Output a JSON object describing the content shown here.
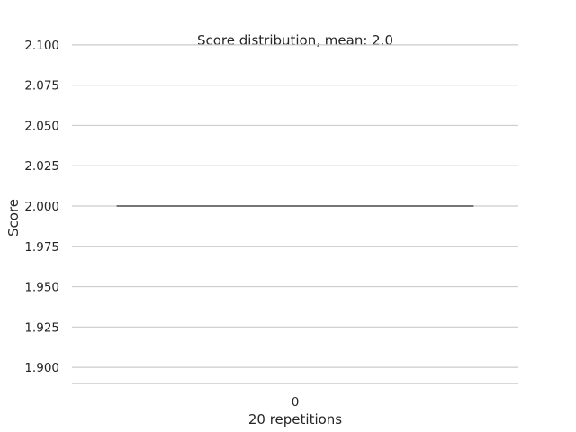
{
  "chart_data": {
    "type": "box",
    "title": "Score distribution, mean: 2.0",
    "xlabel": "20 repetitions",
    "ylabel": "Score",
    "categories": [
      "0"
    ],
    "series": [
      {
        "values": [
          2.0,
          2.0,
          2.0,
          2.0,
          2.0,
          2.0,
          2.0,
          2.0,
          2.0,
          2.0,
          2.0,
          2.0,
          2.0,
          2.0,
          2.0,
          2.0,
          2.0,
          2.0,
          2.0,
          2.0
        ]
      }
    ],
    "box": {
      "min": 2.0,
      "q1": 2.0,
      "median": 2.0,
      "q3": 2.0,
      "max": 2.0
    },
    "ylim": [
      1.89,
      2.11
    ],
    "yticks": [
      1.9,
      1.925,
      1.95,
      1.975,
      2.0,
      2.025,
      2.05,
      2.075,
      2.1
    ],
    "ytick_labels": [
      "1.900",
      "1.925",
      "1.950",
      "1.975",
      "2.000",
      "2.025",
      "2.050",
      "2.075",
      "2.100"
    ],
    "grid": true,
    "colors": {
      "grid": "#cccccc",
      "median": "#4d4d4d",
      "text": "#262626"
    }
  }
}
